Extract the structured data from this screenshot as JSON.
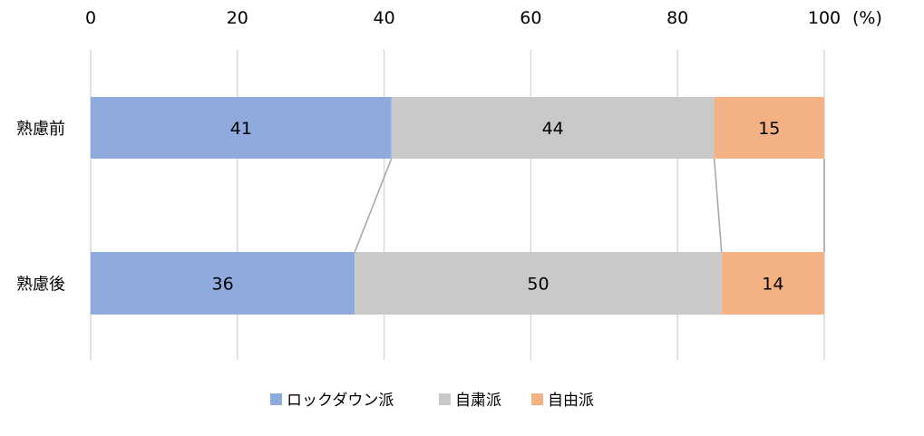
{
  "chart_data": {
    "type": "bar",
    "orientation": "horizontal",
    "stacked": true,
    "categories": [
      "熟慮前",
      "熟慮後"
    ],
    "series": [
      {
        "name": "ロックダウン派",
        "values": [
          41,
          36
        ],
        "color": "#8FAADC"
      },
      {
        "name": "自粛派",
        "values": [
          44,
          50
        ],
        "color": "#C9C9C9"
      },
      {
        "name": "自由派",
        "values": [
          15,
          14
        ],
        "color": "#F4B183"
      }
    ],
    "xlim": [
      0,
      100
    ],
    "xticks": [
      "0",
      "20",
      "40",
      "60",
      "80",
      "100"
    ],
    "xunit": "(%)",
    "xaxis_position": "top",
    "grid": true,
    "series_connector_lines": true,
    "connector_color": "#A5A5A5",
    "legend": "bottom"
  }
}
